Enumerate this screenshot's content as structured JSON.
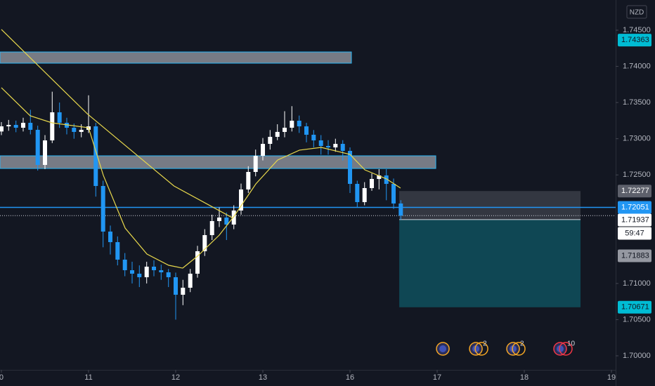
{
  "chart_data": {
    "type": "candlestick",
    "currency": "NZD",
    "countdown": "59:47",
    "xlim": [
      -0.016,
      7.048
    ],
    "ylim": [
      1.69806,
      1.74917
    ],
    "xticks": [
      {
        "value": 0,
        "label": "0"
      },
      {
        "value": 1,
        "label": "11"
      },
      {
        "value": 2,
        "label": "12"
      },
      {
        "value": 3,
        "label": "13"
      },
      {
        "value": 4,
        "label": "16"
      },
      {
        "value": 5,
        "label": "17"
      },
      {
        "value": 6,
        "label": "18"
      },
      {
        "value": 7,
        "label": "19"
      }
    ],
    "yticks": [
      {
        "value": 1.745,
        "label": "1.74500"
      },
      {
        "value": 1.74,
        "label": "1.74000"
      },
      {
        "value": 1.735,
        "label": "1.73500"
      },
      {
        "value": 1.73,
        "label": "1.73000"
      },
      {
        "value": 1.725,
        "label": "1.72500"
      },
      {
        "value": 1.71,
        "label": "1.71000"
      },
      {
        "value": 1.705,
        "label": "1.70500"
      },
      {
        "value": 1.7,
        "label": "1.70000"
      }
    ],
    "up_color": "#ffffff",
    "down_color": "#2196f3",
    "x": [
      0,
      0.083,
      0.167,
      0.25,
      0.333,
      0.417,
      0.5,
      0.583,
      0.667,
      0.75,
      0.833,
      0.917,
      1,
      1.083,
      1.167,
      1.25,
      1.333,
      1.417,
      1.5,
      1.583,
      1.667,
      1.75,
      1.833,
      1.917,
      2,
      2.083,
      2.167,
      2.25,
      2.333,
      2.417,
      2.5,
      2.583,
      2.667,
      2.75,
      2.833,
      2.917,
      3,
      3.083,
      3.167,
      3.25,
      3.333,
      3.417,
      3.5,
      3.583,
      3.667,
      3.75,
      3.833,
      3.917,
      4,
      4.083,
      4.167,
      4.25,
      4.333,
      4.417,
      4.5,
      4.583
    ],
    "open": [
      1.731,
      1.73171,
      1.73191,
      1.73152,
      1.7322,
      1.73123,
      1.72638,
      1.72977,
      1.73365,
      1.7322,
      1.73152,
      1.73094,
      1.73123,
      1.73171,
      1.72347,
      1.71717,
      1.71571,
      1.71329,
      1.71183,
      1.71135,
      1.71086,
      1.71232,
      1.71183,
      1.71154,
      1.71086,
      1.70844,
      1.70941,
      1.71135,
      1.71445,
      1.71668,
      1.71862,
      1.71911,
      1.71814,
      1.72008,
      1.72299,
      1.72541,
      1.72764,
      1.72929,
      1.73026,
      1.73094,
      1.73152,
      1.73249,
      1.73171,
      1.73055,
      1.72977,
      1.729,
      1.7288,
      1.72929,
      1.72832,
      1.72376,
      1.72124,
      1.72318,
      1.72444,
      1.72493,
      1.72376,
      1.72105
    ],
    "high": [
      1.7323,
      1.7326,
      1.7325,
      1.7329,
      1.734,
      1.7318,
      1.7305,
      1.7365,
      1.735,
      1.7329,
      1.7321,
      1.732,
      1.736,
      1.7322,
      1.7242,
      1.718,
      1.7165,
      1.7142,
      1.713,
      1.7125,
      1.713,
      1.7132,
      1.7126,
      1.712,
      1.7115,
      1.7105,
      1.712,
      1.7152,
      1.7175,
      1.7195,
      1.7205,
      1.7198,
      1.7208,
      1.7238,
      1.7262,
      1.7285,
      1.7301,
      1.7312,
      1.732,
      1.7338,
      1.7345,
      1.7332,
      1.7322,
      1.7312,
      1.7305,
      1.7298,
      1.73,
      1.7298,
      1.7288,
      1.7242,
      1.724,
      1.7252,
      1.7258,
      1.7258,
      1.7245,
      1.7215
    ],
    "low": [
      1.7305,
      1.7311,
      1.7309,
      1.731,
      1.7306,
      1.7256,
      1.7258,
      1.7294,
      1.7315,
      1.7306,
      1.73,
      1.7302,
      1.7308,
      1.722,
      1.715,
      1.714,
      1.7125,
      1.711,
      1.71,
      1.7095,
      1.71,
      1.711,
      1.7105,
      1.7095,
      1.705,
      1.707,
      1.7088,
      1.7108,
      1.7138,
      1.716,
      1.7178,
      1.716,
      1.7175,
      1.7195,
      1.7225,
      1.7248,
      1.727,
      1.7285,
      1.7298,
      1.7302,
      1.731,
      1.7308,
      1.7295,
      1.7288,
      1.7278,
      1.7278,
      1.7282,
      1.727,
      1.7225,
      1.7205,
      1.7208,
      1.7228,
      1.723,
      1.7215,
      1.7203,
      1.7188
    ],
    "close": [
      1.73171,
      1.73191,
      1.73152,
      1.7322,
      1.73123,
      1.72638,
      1.72977,
      1.73365,
      1.7322,
      1.73152,
      1.73094,
      1.73123,
      1.73171,
      1.72347,
      1.71717,
      1.71571,
      1.71329,
      1.71183,
      1.71135,
      1.71086,
      1.71232,
      1.71183,
      1.71154,
      1.71086,
      1.70844,
      1.70941,
      1.71135,
      1.71445,
      1.71668,
      1.71862,
      1.71911,
      1.71814,
      1.72008,
      1.72299,
      1.72541,
      1.72764,
      1.72929,
      1.73026,
      1.73094,
      1.73152,
      1.73249,
      1.73171,
      1.73055,
      1.72977,
      1.729,
      1.7288,
      1.72929,
      1.72832,
      1.72376,
      1.72124,
      1.72318,
      1.72444,
      1.72493,
      1.72376,
      1.72105,
      1.71937
    ],
    "lines": [
      {
        "color": "#e8d84c",
        "x": [
          0,
          0.984,
          1.98,
          2.645
        ],
        "values": [
          1.7451,
          1.73346,
          1.72347,
          1.71911
        ]
      },
      {
        "color": "#e8d84c",
        "x": [
          0,
          0.33,
          0.58,
          1,
          1.17,
          1.42,
          1.67,
          1.92,
          2.08,
          2.25,
          2.5,
          2.67,
          2.92,
          3.17,
          3.42,
          3.67,
          4,
          4.17,
          4.42,
          4.58
        ],
        "values": [
          1.73705,
          1.73317,
          1.7322,
          1.73152,
          1.72493,
          1.71765,
          1.71406,
          1.71251,
          1.71212,
          1.71377,
          1.71668,
          1.7193,
          1.72376,
          1.72706,
          1.72842,
          1.7288,
          1.72783,
          1.7257,
          1.72444,
          1.72318
        ]
      }
    ],
    "zones": [
      {
        "x": [
          -0.016,
          4.016
        ],
        "y": [
          1.74199,
          1.74044
        ]
      },
      {
        "x": [
          -0.016,
          4.984
        ],
        "y": [
          1.72764,
          1.72589
        ]
      }
    ],
    "hlines": [
      {
        "value": 1.72051,
        "color": "#2196f3",
        "style": "solid"
      },
      {
        "value": 1.71937,
        "color": "#d1d4dc",
        "style": "dotted"
      }
    ],
    "position": {
      "x": [
        4.565,
        6.645
      ],
      "top": 1.72277,
      "entry": 1.71883,
      "bottom": 1.70671
    },
    "price_tags": [
      {
        "value": 1.74363,
        "color": "#00bcd4",
        "text_color": "#131722"
      },
      {
        "value": 1.72277,
        "color": "#5d606b",
        "text_color": "#ffffff"
      },
      {
        "value": 1.72051,
        "color": "#2196f3",
        "text_color": "#ffffff"
      },
      {
        "value": 1.71937,
        "color": "#ffffff",
        "text_color": "#131722"
      },
      {
        "value": 1.71883,
        "color": "#9598a1",
        "text_color": "#131722"
      },
      {
        "value": 1.70671,
        "color": "#00bcd4",
        "text_color": "#131722"
      }
    ],
    "events": {
      "x": [
        5.065,
        5.444,
        5.871,
        6.411
      ],
      "counts": [
        null,
        2,
        2,
        10
      ],
      "colors": [
        "#f5a623",
        "#f5a623",
        "#f5a623",
        "#f23645"
      ]
    }
  }
}
